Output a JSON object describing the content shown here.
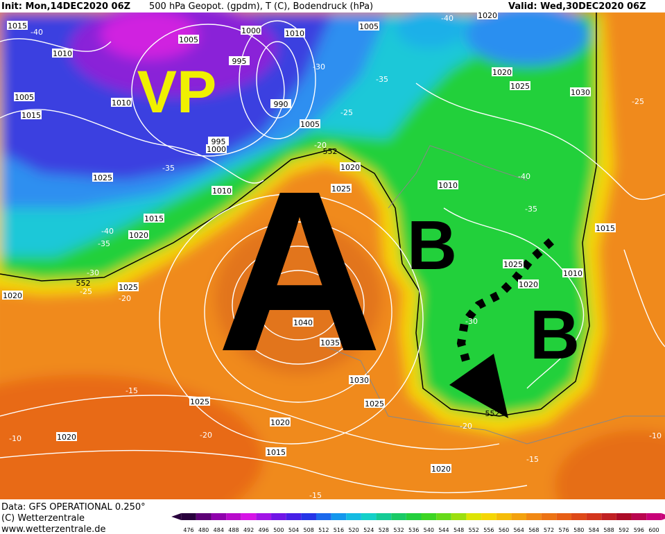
{
  "header": {
    "init": "Init: Mon,14DEC2020 06Z",
    "fields": "500 hPa Geopot. (gpdm), T (C), Bodendruck (hPa)",
    "valid": "Valid: Wed,30DEC2020 06Z"
  },
  "footer": {
    "source": "Data: GFS OPERATIONAL 0.250°",
    "copyright": "(C) Wetterzentrale",
    "url": "www.wetterzentrale.de"
  },
  "annotations": [
    "VP",
    "A",
    "B",
    "B"
  ],
  "isobar_labels": [
    "1015",
    "1010",
    "1005",
    "1015",
    "1010",
    "1005",
    "1000",
    "1010",
    "995",
    "990",
    "995",
    "1000",
    "1005",
    "1005",
    "1020",
    "1020",
    "1025",
    "1030",
    "1020",
    "1025",
    "1010",
    "1025",
    "1010",
    "1015",
    "1020",
    "1015",
    "1025",
    "1020",
    "1010",
    "1025",
    "1020",
    "1040",
    "1035",
    "1030",
    "1025",
    "1025",
    "1020",
    "1020",
    "1015",
    "1020"
  ],
  "temperature_labels": [
    "-40",
    "-30",
    "-35",
    "-25",
    "-20",
    "-35",
    "-40",
    "-35",
    "-30",
    "-25",
    "-20",
    "-40",
    "-40",
    "-35",
    "-25",
    "-15",
    "-20",
    "-10",
    "-20",
    "-15",
    "-15",
    "-10",
    "-30"
  ],
  "contour_labels": [
    "552",
    "552",
    "552"
  ],
  "colorbar": [
    476,
    480,
    484,
    488,
    492,
    496,
    500,
    504,
    508,
    512,
    516,
    520,
    524,
    528,
    532,
    536,
    540,
    544,
    548,
    552,
    556,
    560,
    564,
    568,
    572,
    576,
    580,
    584,
    588,
    592,
    596,
    600
  ]
}
